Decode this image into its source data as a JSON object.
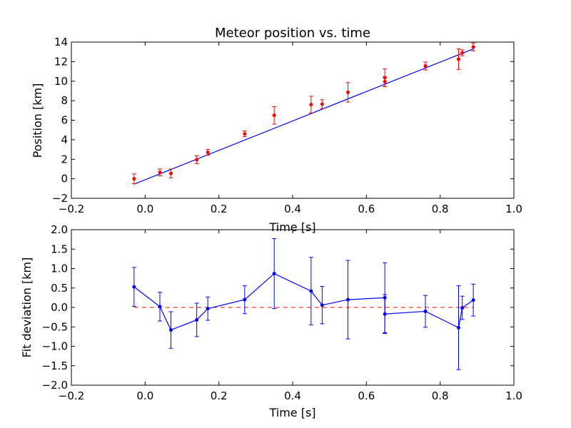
{
  "chart_data": [
    {
      "type": "scatter",
      "title": "Meteor position vs. time",
      "xlabel": "Time [s]",
      "ylabel": "Position [km]",
      "xlim": [
        -0.2,
        1.0
      ],
      "ylim": [
        -2,
        14
      ],
      "x_ticks": [
        "−0.2",
        "0.0",
        "0.2",
        "0.4",
        "0.6",
        "0.8",
        "1.0"
      ],
      "y_ticks": [
        "−2",
        "0",
        "2",
        "4",
        "6",
        "8",
        "10",
        "12",
        "14"
      ],
      "x_tick_values": [
        -0.2,
        0.0,
        0.2,
        0.4,
        0.6,
        0.8,
        1.0
      ],
      "y_tick_values": [
        -2,
        0,
        2,
        4,
        6,
        8,
        10,
        12,
        14
      ],
      "points": [
        {
          "x": -0.03,
          "y": 0.0,
          "err": 0.5
        },
        {
          "x": 0.04,
          "y": 0.65,
          "err": 0.35
        },
        {
          "x": 0.07,
          "y": 0.55,
          "err": 0.45
        },
        {
          "x": 0.14,
          "y": 1.95,
          "err": 0.4
        },
        {
          "x": 0.17,
          "y": 2.7,
          "err": 0.3
        },
        {
          "x": 0.27,
          "y": 4.6,
          "err": 0.3
        },
        {
          "x": 0.35,
          "y": 6.5,
          "err": 0.9
        },
        {
          "x": 0.45,
          "y": 7.6,
          "err": 0.85
        },
        {
          "x": 0.48,
          "y": 7.65,
          "err": 0.45
        },
        {
          "x": 0.55,
          "y": 8.85,
          "err": 1.0
        },
        {
          "x": 0.65,
          "y": 10.35,
          "err": 0.9
        },
        {
          "x": 0.65,
          "y": 9.95,
          "err": 0.5
        },
        {
          "x": 0.76,
          "y": 11.55,
          "err": 0.4
        },
        {
          "x": 0.85,
          "y": 12.25,
          "err": 1.05
        },
        {
          "x": 0.86,
          "y": 12.9,
          "err": 0.3
        },
        {
          "x": 0.89,
          "y": 13.5,
          "err": 0.4
        }
      ],
      "fit_line": {
        "x": [
          -0.03,
          0.89
        ],
        "y": [
          -0.55,
          13.3
        ]
      },
      "marker_color": "#ff0000",
      "line_color": "#0000ff"
    },
    {
      "type": "line",
      "title": "",
      "xlabel": "Time [s]",
      "ylabel": "Fit deviation [km]",
      "xlim": [
        -0.2,
        1.0
      ],
      "ylim": [
        -2.0,
        2.0
      ],
      "x_ticks": [
        "−0.2",
        "0.0",
        "0.2",
        "0.4",
        "0.6",
        "0.8",
        "1.0"
      ],
      "y_ticks": [
        "−2.0",
        "−1.5",
        "−1.0",
        "−0.5",
        "0.0",
        "0.5",
        "1.0",
        "1.5",
        "2.0"
      ],
      "x_tick_values": [
        -0.2,
        0.0,
        0.2,
        0.4,
        0.6,
        0.8,
        1.0
      ],
      "y_tick_values": [
        -2.0,
        -1.5,
        -1.0,
        -0.5,
        0.0,
        0.5,
        1.0,
        1.5,
        2.0
      ],
      "points": [
        {
          "x": -0.03,
          "y": 0.53,
          "err": 0.5
        },
        {
          "x": 0.04,
          "y": 0.02,
          "err": 0.37
        },
        {
          "x": 0.07,
          "y": -0.58,
          "err": 0.47
        },
        {
          "x": 0.14,
          "y": -0.32,
          "err": 0.43
        },
        {
          "x": 0.17,
          "y": -0.03,
          "err": 0.3
        },
        {
          "x": 0.27,
          "y": 0.2,
          "err": 0.36
        },
        {
          "x": 0.35,
          "y": 0.87,
          "err": 0.9
        },
        {
          "x": 0.45,
          "y": 0.42,
          "err": 0.87
        },
        {
          "x": 0.48,
          "y": 0.06,
          "err": 0.48
        },
        {
          "x": 0.55,
          "y": 0.2,
          "err": 1.01
        },
        {
          "x": 0.65,
          "y": 0.25,
          "err": 0.9
        },
        {
          "x": 0.65,
          "y": -0.17,
          "err": 0.5
        },
        {
          "x": 0.76,
          "y": -0.1,
          "err": 0.41
        },
        {
          "x": 0.85,
          "y": -0.52,
          "err": 1.08
        },
        {
          "x": 0.86,
          "y": -0.01,
          "err": 0.3
        },
        {
          "x": 0.89,
          "y": 0.19,
          "err": 0.41
        }
      ],
      "reference_line": {
        "y": 0.0,
        "x_from": -0.03,
        "x_to": 0.89
      },
      "line_color": "#0000ff",
      "reference_color": "#ff0000"
    }
  ]
}
